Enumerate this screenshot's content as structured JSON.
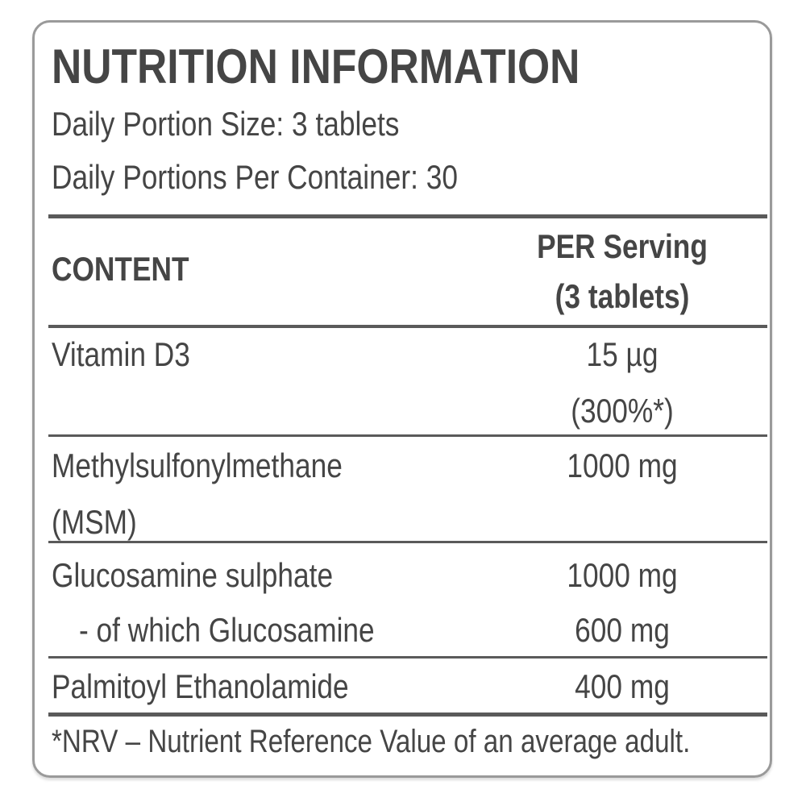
{
  "title": "NUTRITION INFORMATION",
  "portion_size": "Daily Portion Size: 3 tablets",
  "portions_per_container": "Daily Portions Per Container: 30",
  "table": {
    "header": {
      "content": "CONTENT",
      "per_serving_line1": "PER Serving",
      "per_serving_line2": "(3 tablets)"
    },
    "rows": [
      {
        "name": "Vitamin D3",
        "value": "15 µg",
        "nrv": "(300%*)"
      },
      {
        "name": "Methylsulfonylmethane",
        "name_line2": "(MSM)",
        "value": "1000 mg"
      },
      {
        "name": "Glucosamine sulphate",
        "value": "1000 mg",
        "sub_name": "- of which Glucosamine",
        "sub_value": "600 mg"
      },
      {
        "name": "Palmitoyl Ethanolamide",
        "value": "400 mg"
      }
    ]
  },
  "footnote": "*NRV – Nutrient Reference Value of an average adult."
}
